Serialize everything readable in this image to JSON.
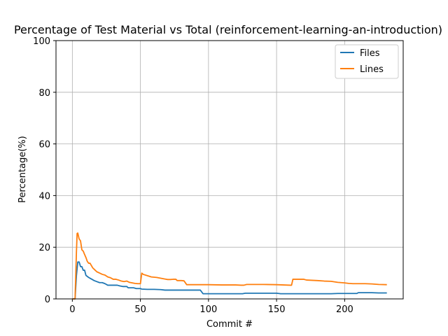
{
  "chart_data": {
    "type": "line",
    "title": "Percentage of Test Material vs Total (reinforcement-learning-an-introduction)",
    "xlabel": "Commit #",
    "ylabel": "Percentage(%)",
    "xlim": [
      -12,
      243
    ],
    "ylim": [
      0,
      100
    ],
    "xticks": [
      0,
      50,
      100,
      150,
      200
    ],
    "yticks": [
      0,
      20,
      40,
      60,
      80,
      100
    ],
    "grid": true,
    "legend_position": "top-right",
    "series": [
      {
        "name": "Files",
        "color": "#1f77b4",
        "points": [
          [
            0,
            0
          ],
          [
            1,
            0
          ],
          [
            2,
            0
          ],
          [
            3,
            9
          ],
          [
            4,
            14.3
          ],
          [
            5,
            14.3
          ],
          [
            6,
            12.5
          ],
          [
            7,
            12.5
          ],
          [
            8,
            11.1
          ],
          [
            9,
            11.1
          ],
          [
            10,
            9.1
          ],
          [
            12,
            8.3
          ],
          [
            14,
            7.7
          ],
          [
            16,
            7.1
          ],
          [
            18,
            6.7
          ],
          [
            20,
            6.3
          ],
          [
            22,
            6.3
          ],
          [
            24,
            5.9
          ],
          [
            26,
            5.3
          ],
          [
            30,
            5.3
          ],
          [
            33,
            5.3
          ],
          [
            35,
            5.0
          ],
          [
            37,
            4.8
          ],
          [
            40,
            4.8
          ],
          [
            41,
            4.3
          ],
          [
            45,
            4.3
          ],
          [
            47,
            4.0
          ],
          [
            50,
            4.0
          ],
          [
            51,
            3.8
          ],
          [
            55,
            3.7
          ],
          [
            60,
            3.7
          ],
          [
            65,
            3.6
          ],
          [
            68,
            3.4
          ],
          [
            75,
            3.4
          ],
          [
            85,
            3.4
          ],
          [
            90,
            3.4
          ],
          [
            94,
            3.4
          ],
          [
            96,
            2.0
          ],
          [
            100,
            2.0
          ],
          [
            110,
            2.0
          ],
          [
            120,
            2.0
          ],
          [
            125,
            2.0
          ],
          [
            127,
            2.2
          ],
          [
            140,
            2.2
          ],
          [
            150,
            2.2
          ],
          [
            153,
            2.0
          ],
          [
            160,
            2.0
          ],
          [
            170,
            2.0
          ],
          [
            180,
            2.0
          ],
          [
            190,
            2.0
          ],
          [
            195,
            2.1
          ],
          [
            200,
            2.1
          ],
          [
            205,
            2.1
          ],
          [
            209,
            2.1
          ],
          [
            210,
            2.4
          ],
          [
            220,
            2.4
          ],
          [
            225,
            2.3
          ],
          [
            231,
            2.3
          ]
        ]
      },
      {
        "name": "Lines",
        "color": "#ff7f0e",
        "points": [
          [
            0,
            0
          ],
          [
            1,
            0
          ],
          [
            2,
            0
          ],
          [
            3,
            18
          ],
          [
            3.5,
            25.3
          ],
          [
            4,
            25.5
          ],
          [
            5,
            23.2
          ],
          [
            6,
            22.5
          ],
          [
            7,
            19
          ],
          [
            8,
            18.5
          ],
          [
            9,
            17.2
          ],
          [
            10,
            16
          ],
          [
            11,
            14.5
          ],
          [
            12,
            13.8
          ],
          [
            13,
            13.8
          ],
          [
            14,
            12.9
          ],
          [
            15,
            12
          ],
          [
            16,
            11.5
          ],
          [
            17,
            11
          ],
          [
            18,
            10.5
          ],
          [
            20,
            10
          ],
          [
            22,
            9.5
          ],
          [
            24,
            9.2
          ],
          [
            26,
            8.5
          ],
          [
            28,
            8.2
          ],
          [
            30,
            7.6
          ],
          [
            32,
            7.6
          ],
          [
            34,
            7.3
          ],
          [
            36,
            6.9
          ],
          [
            38,
            6.7
          ],
          [
            40,
            6.9
          ],
          [
            42,
            6.4
          ],
          [
            44,
            6.2
          ],
          [
            46,
            6.0
          ],
          [
            48,
            5.9
          ],
          [
            50,
            5.9
          ],
          [
            51,
            10.0
          ],
          [
            52,
            9.5
          ],
          [
            55,
            9.0
          ],
          [
            58,
            8.5
          ],
          [
            62,
            8.3
          ],
          [
            65,
            8.0
          ],
          [
            68,
            7.7
          ],
          [
            70,
            7.5
          ],
          [
            72,
            7.5
          ],
          [
            74,
            7.6
          ],
          [
            76,
            7.6
          ],
          [
            77,
            7.1
          ],
          [
            80,
            7.1
          ],
          [
            82,
            7.0
          ],
          [
            84,
            5.5
          ],
          [
            90,
            5.5
          ],
          [
            100,
            5.5
          ],
          [
            110,
            5.4
          ],
          [
            120,
            5.4
          ],
          [
            124,
            5.3
          ],
          [
            126,
            5.3
          ],
          [
            128,
            5.6
          ],
          [
            140,
            5.6
          ],
          [
            150,
            5.5
          ],
          [
            160,
            5.3
          ],
          [
            161,
            5.3
          ],
          [
            162,
            7.6
          ],
          [
            170,
            7.6
          ],
          [
            172,
            7.3
          ],
          [
            180,
            7.1
          ],
          [
            185,
            6.9
          ],
          [
            190,
            6.8
          ],
          [
            195,
            6.4
          ],
          [
            200,
            6.2
          ],
          [
            203,
            6.0
          ],
          [
            206,
            5.9
          ],
          [
            210,
            5.9
          ],
          [
            215,
            5.9
          ],
          [
            220,
            5.8
          ],
          [
            225,
            5.6
          ],
          [
            231,
            5.5
          ]
        ]
      }
    ]
  }
}
